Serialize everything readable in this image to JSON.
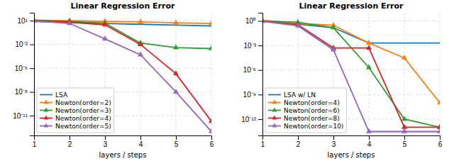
{
  "chart_data": [
    {
      "type": "line",
      "title": "Linear Regression Error",
      "x_label": "layers / steps",
      "log": "y",
      "grid": true,
      "legend": "lower left",
      "x": [
        1,
        2,
        3,
        4,
        5,
        6
      ],
      "xlim": [
        1,
        6
      ],
      "xticks": [
        1,
        2,
        3,
        4,
        5,
        6
      ],
      "ylim": [
        3.1622776601683796e-14,
        100
      ],
      "yticks": [
        {
          "value": 1e-11,
          "label": "10⁻¹¹"
        },
        {
          "value": 1e-08,
          "label": "10⁻⁸"
        },
        {
          "value": 1e-05,
          "label": "10⁻⁵"
        },
        {
          "value": 0.01,
          "label": "10⁻²"
        },
        {
          "value": 10,
          "label": "10¹"
        }
      ],
      "series": [
        {
          "name": "LSA",
          "values": [
            8.0,
            6.0,
            4.5,
            3.5,
            2.8,
            2.2
          ]
        },
        {
          "name": "Newton(order=2)",
          "marker": "triangle-up",
          "values": [
            12.0,
            10.0,
            8.0,
            7.0,
            5.5,
            4.5
          ]
        },
        {
          "name": "Newton(order=3)",
          "marker": "triangle-up",
          "values": [
            11.0,
            8.0,
            5.0,
            0.015,
            0.004,
            0.003
          ]
        },
        {
          "name": "Newton(order=4)",
          "marker": "triangle-up",
          "values": [
            10.0,
            6.5,
            3.0,
            0.01,
            2e-06,
            2e-12
          ],
          "lower": [
            9.5,
            6.0,
            2.7,
            0.008,
            1.5e-06,
            1e-12
          ],
          "upper": [
            10.5,
            7.0,
            3.3,
            0.012,
            2.5e-06,
            3e-12
          ]
        },
        {
          "name": "Newton(order=5)",
          "marker": "triangle-up",
          "values": [
            9.0,
            4.5,
            0.05,
            0.0005,
            1e-08,
            1e-13
          ],
          "lower": [
            8.5,
            4.0,
            0.04,
            0.0004,
            8e-09,
            8e-14
          ],
          "upper": [
            9.5,
            5.0,
            0.06,
            0.0006,
            1.2e-08,
            1.2e-13
          ]
        }
      ]
    },
    {
      "type": "line",
      "title": "Linear Regression Error",
      "x_label": "layers / steps",
      "log": "y",
      "grid": true,
      "legend": "lower left",
      "x": [
        1,
        2,
        3,
        4,
        5,
        6
      ],
      "xlim": [
        1,
        6
      ],
      "xticks": [
        1,
        2,
        3,
        4,
        5,
        6
      ],
      "ylim": [
        1e-14,
        10
      ],
      "yticks": [
        {
          "value": 1e-12,
          "label": "10⁻¹²"
        },
        {
          "value": 1e-09,
          "label": "10⁻⁹"
        },
        {
          "value": 1e-06,
          "label": "10⁻⁶"
        },
        {
          "value": 0.001,
          "label": "10⁻³"
        },
        {
          "value": 1,
          "label": "10⁰"
        }
      ],
      "series": [
        {
          "name": "LSA w/ LN",
          "values": [
            1.0,
            0.4,
            0.15,
            0.002,
            0.002,
            0.002
          ]
        },
        {
          "name": "Newton(order=4)",
          "marker": "triangle-up",
          "values": [
            1.2,
            0.5,
            0.3,
            0.002,
            3e-05,
            1e-10
          ]
        },
        {
          "name": "Newton(order=6)",
          "marker": "triangle-up",
          "values": [
            1.0,
            0.7,
            0.15,
            2e-06,
            1e-12,
            1e-13
          ]
        },
        {
          "name": "Newton(order=8)",
          "marker": "triangle-up",
          "values": [
            1.0,
            0.35,
            0.0005,
            0.0005,
            1e-13,
            1e-13
          ],
          "lower": [
            0.9,
            0.3,
            0.0004,
            0.0004,
            8e-14,
            8e-14
          ],
          "upper": [
            1.1,
            0.4,
            0.0006,
            0.0006,
            1.2e-13,
            1.2e-13
          ]
        },
        {
          "name": "Newton(order=10)",
          "marker": "triangle-up",
          "values": [
            0.9,
            0.25,
            0.0003,
            3e-14,
            3e-14,
            3e-14
          ],
          "lower": [
            0.8,
            0.2,
            0.0002,
            2e-14,
            2e-14,
            2e-14
          ],
          "upper": [
            1.0,
            0.3,
            0.0004,
            4e-14,
            4e-14,
            4e-14
          ]
        }
      ]
    }
  ]
}
